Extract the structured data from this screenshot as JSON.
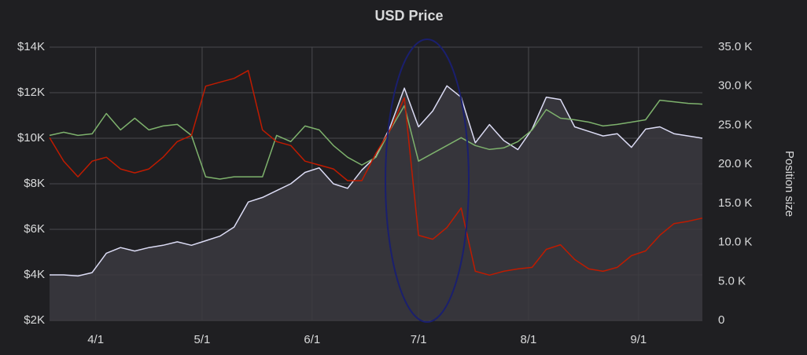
{
  "chart_data": {
    "type": "line",
    "title": "USD Price",
    "y2label": "Position size",
    "x": [
      "3/19",
      "3/23",
      "3/27",
      "3/31",
      "4/4",
      "4/8",
      "4/12",
      "4/16",
      "4/20",
      "4/24",
      "4/28",
      "5/2",
      "5/6",
      "5/10",
      "5/14",
      "5/18",
      "5/22",
      "5/26",
      "5/30",
      "6/3",
      "6/7",
      "6/11",
      "6/15",
      "6/19",
      "6/23",
      "6/27",
      "7/1",
      "7/5",
      "7/9",
      "7/13",
      "7/17",
      "7/21",
      "7/25",
      "7/29",
      "8/2",
      "8/6",
      "8/10",
      "8/14",
      "8/18",
      "8/22",
      "8/26",
      "8/30",
      "9/3",
      "9/7",
      "9/11",
      "9/15",
      "9/19"
    ],
    "xlim": [
      "3/19",
      "9/19"
    ],
    "xticks": [
      "4/1",
      "5/1",
      "6/1",
      "7/1",
      "8/1",
      "9/1"
    ],
    "ylim": [
      2000,
      14000
    ],
    "yticks": [
      {
        "value": 2000,
        "label": "$2K"
      },
      {
        "value": 4000,
        "label": "$4K"
      },
      {
        "value": 6000,
        "label": "$6K"
      },
      {
        "value": 8000,
        "label": "$8K"
      },
      {
        "value": 10000,
        "label": "$10K"
      },
      {
        "value": 12000,
        "label": "$12K"
      },
      {
        "value": 14000,
        "label": "$14K"
      }
    ],
    "y2lim": [
      0,
      35000
    ],
    "y2ticks": [
      0,
      {
        "value": 5000,
        "label": "5.0 K"
      },
      {
        "value": 10000,
        "label": "10.0 K"
      },
      {
        "value": 15000,
        "label": "15.0 K"
      },
      {
        "value": 20000,
        "label": "20.0 K"
      },
      {
        "value": 25000,
        "label": "25.0 K"
      },
      {
        "value": 30000,
        "label": "30.0 K"
      },
      {
        "value": 35000,
        "label": "35.0 K"
      }
    ],
    "grid": true,
    "series": [
      {
        "color": "#dcdcf5",
        "fill": "#3b3a40",
        "axis": "y",
        "values": [
          4000,
          4000,
          3950,
          4100,
          4950,
          5200,
          5050,
          5200,
          5300,
          5450,
          5300,
          5500,
          5700,
          6100,
          7200,
          7400,
          7700,
          8000,
          8500,
          8700,
          8000,
          7800,
          8600,
          9200,
          10500,
          12200,
          10500,
          11200,
          12300,
          11800,
          9800,
          10600,
          9900,
          9500,
          10400,
          11800,
          11700,
          10500,
          10300,
          10100,
          10200,
          9600,
          10400,
          10500,
          10200,
          10100,
          10000
        ]
      },
      {
        "color": "#7eb26d",
        "axis": "y2",
        "values": [
          23700,
          24100,
          23700,
          23900,
          26500,
          24400,
          25900,
          24400,
          24900,
          25100,
          23700,
          18400,
          18100,
          18400,
          18400,
          18400,
          23700,
          22900,
          24900,
          24400,
          22400,
          20900,
          19900,
          20900,
          24400,
          27500,
          20400,
          21400,
          22400,
          23400,
          22400,
          21900,
          22100,
          22900,
          24400,
          27000,
          25900,
          25700,
          25400,
          24900,
          25100,
          25400,
          25700,
          28200,
          28000,
          27800,
          27700
        ]
      },
      {
        "color": "#bf1b00",
        "axis": "y2",
        "values": [
          23400,
          20400,
          18400,
          20400,
          20900,
          19400,
          18900,
          19400,
          20900,
          22900,
          23700,
          30000,
          30500,
          31000,
          32000,
          24400,
          22900,
          22400,
          20400,
          19900,
          19400,
          17900,
          17900,
          21400,
          24400,
          28500,
          10900,
          10400,
          11900,
          14400,
          6300,
          5800,
          6300,
          6600,
          6800,
          9100,
          9700,
          7800,
          6600,
          6300,
          6800,
          8300,
          8900,
          10900,
          12400,
          12700,
          13100
        ]
      }
    ]
  }
}
